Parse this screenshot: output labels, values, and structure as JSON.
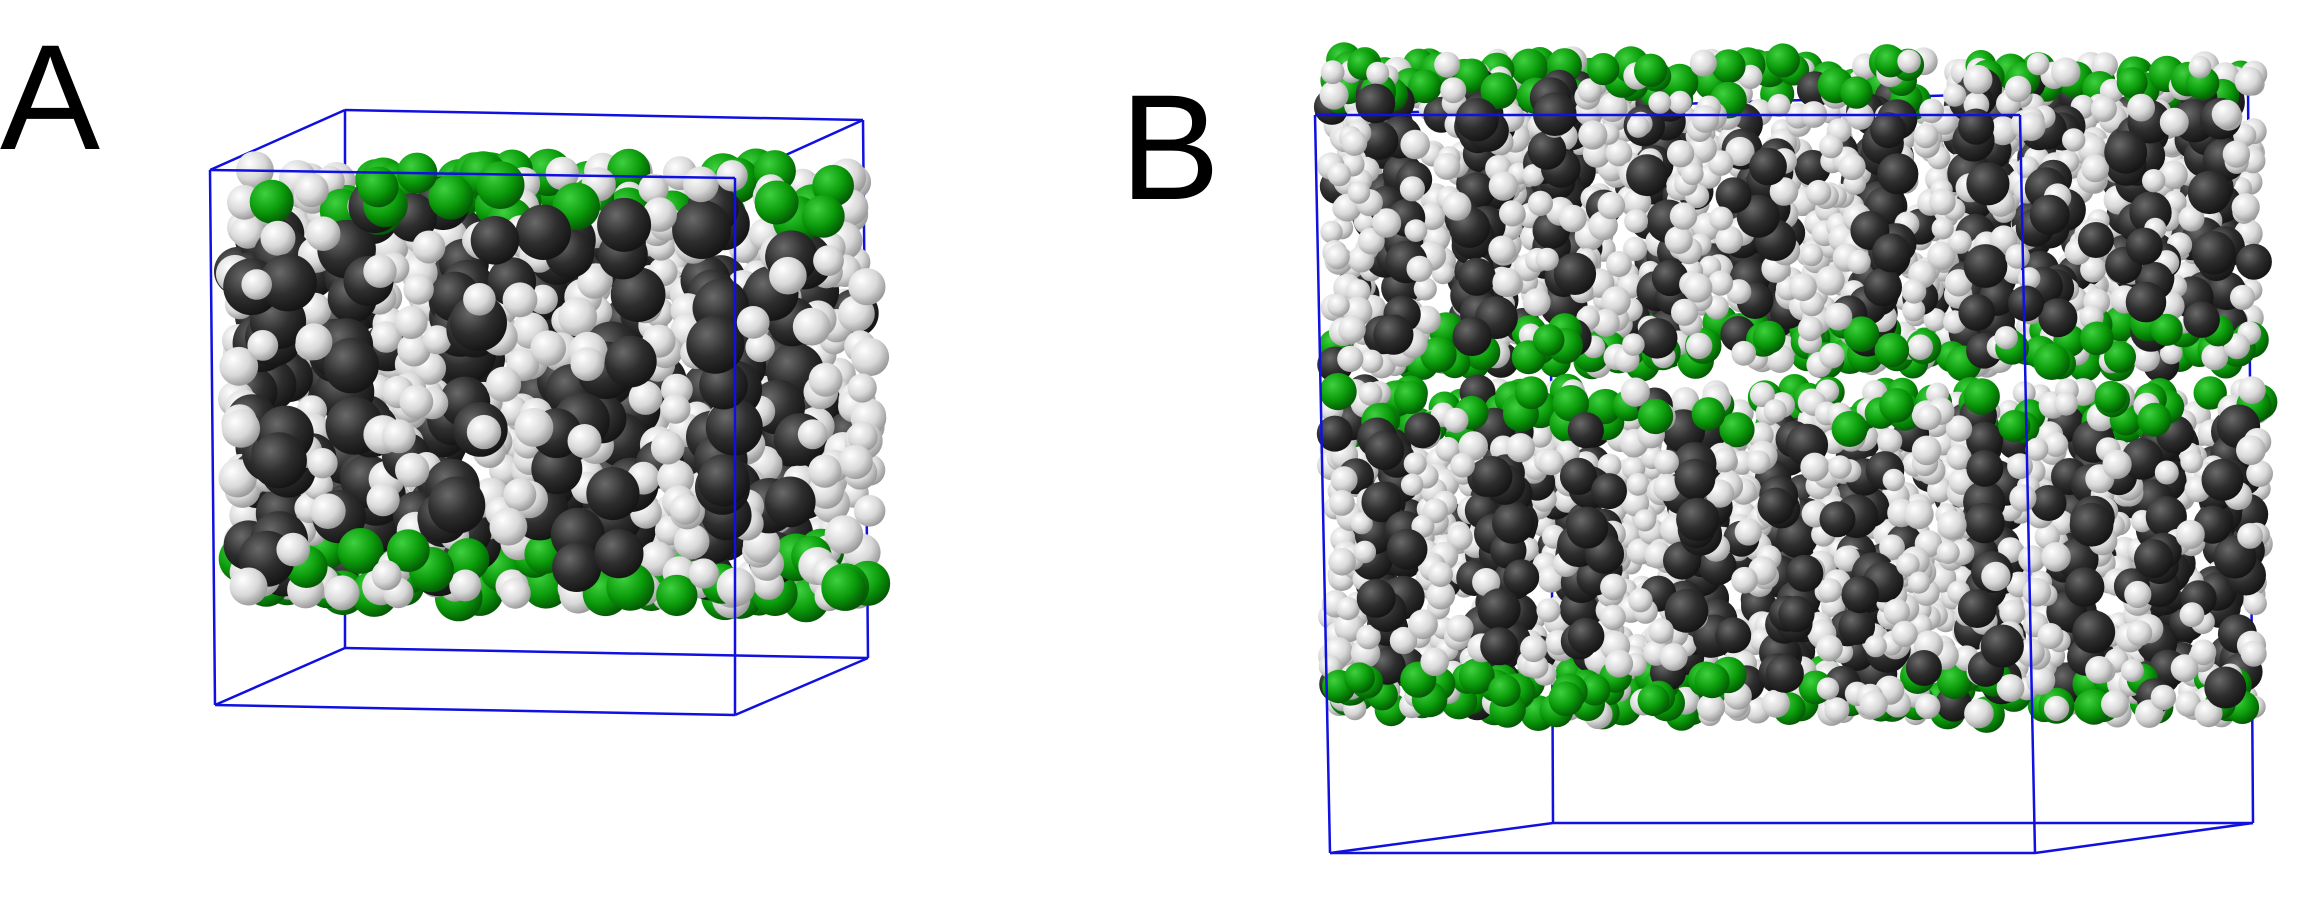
{
  "panels": [
    {
      "label": "A"
    },
    {
      "label": "B"
    }
  ],
  "colors": {
    "box": "#1010e0",
    "carbon": "#2b2b2b",
    "hydrogen": "#dedede",
    "green": "#0a9a0a",
    "background": "#ffffff"
  }
}
